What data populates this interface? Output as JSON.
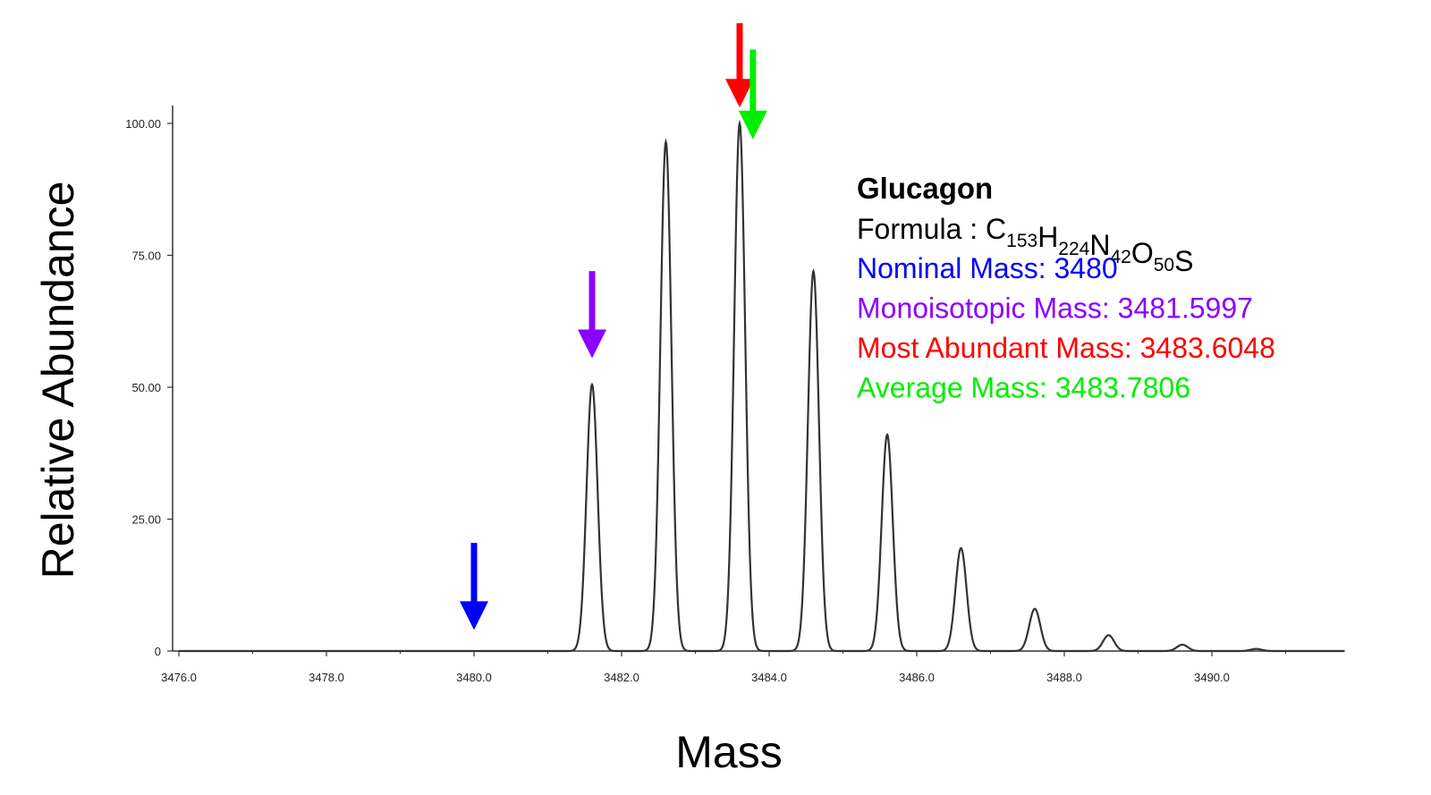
{
  "chart_data": {
    "type": "line",
    "xlabel": "Mass",
    "ylabel": "Relative Abundance",
    "xlim": [
      3476.0,
      3491.8
    ],
    "ylim": [
      0,
      100
    ],
    "x_ticks": [
      "3476.0",
      "3478.0",
      "3480.0",
      "3482.0",
      "3484.0",
      "3486.0",
      "3488.0",
      "3490.0"
    ],
    "y_ticks": [
      "0",
      "25.00",
      "50.00",
      "75.00",
      "100.00"
    ],
    "grid": false,
    "series": [
      {
        "color": "#333333",
        "peaks": [
          {
            "x": 3481.6,
            "y": 50.5
          },
          {
            "x": 3482.6,
            "y": 96.5
          },
          {
            "x": 3483.6,
            "y": 100.0
          },
          {
            "x": 3484.6,
            "y": 72.0
          },
          {
            "x": 3485.6,
            "y": 41.0
          },
          {
            "x": 3486.6,
            "y": 19.5
          },
          {
            "x": 3487.6,
            "y": 8.0
          },
          {
            "x": 3488.6,
            "y": 3.0
          },
          {
            "x": 3489.6,
            "y": 1.2
          },
          {
            "x": 3490.6,
            "y": 0.4
          }
        ]
      }
    ],
    "annotations": [
      {
        "name": "nominal",
        "x": 3480.0,
        "y": 20.5,
        "color": "#0000ff"
      },
      {
        "name": "monoisotopic",
        "x": 3481.6,
        "y": 72.0,
        "color": "#8b00ff"
      },
      {
        "name": "most-abundant",
        "x": 3483.6,
        "y": 119.0,
        "color": "#ff0000"
      },
      {
        "name": "average",
        "x": 3483.78,
        "y": 114.0,
        "color": "#00ee00"
      }
    ]
  },
  "info": {
    "title": "Glucagon",
    "formula_label": "Formula : ",
    "formula": [
      {
        "el": "C",
        "n": "153"
      },
      {
        "el": "H",
        "n": "224"
      },
      {
        "el": "N",
        "n": "42"
      },
      {
        "el": "O",
        "n": "50"
      },
      {
        "el": "S",
        "n": ""
      }
    ],
    "lines": [
      {
        "text": "Nominal Mass:  3480",
        "color": "#0000ff"
      },
      {
        "text": "Monoisotopic Mass: 3481.5997",
        "color": "#8b00ff"
      },
      {
        "text": "Most Abundant Mass:  3483.6048",
        "color": "#ff0000"
      },
      {
        "text": "Average Mass: 3483.7806",
        "color": "#00ee00"
      }
    ]
  }
}
